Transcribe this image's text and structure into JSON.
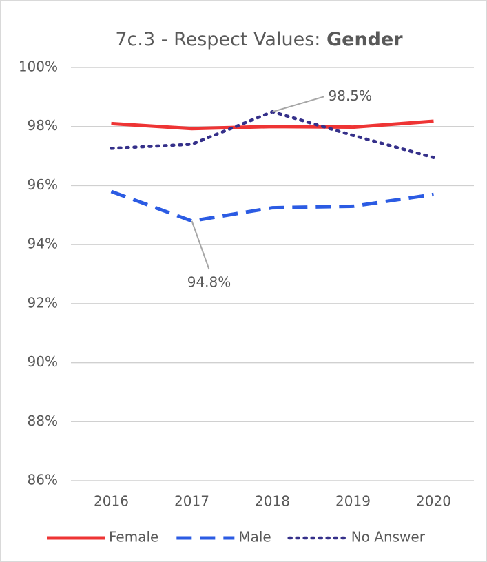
{
  "chart_data": {
    "type": "line",
    "title": "7c.3 - Respect Values:",
    "title_emphasis": "Gender",
    "categories": [
      "2016",
      "2017",
      "2018",
      "2019",
      "2020"
    ],
    "series": [
      {
        "name": "Female",
        "color": "#ee3434",
        "dash": "solid",
        "values": [
          98.1,
          97.93,
          98.0,
          97.98,
          98.18
        ]
      },
      {
        "name": "Male",
        "color": "#2b5be3",
        "dash": "dashed",
        "values": [
          95.8,
          94.8,
          95.25,
          95.3,
          95.7
        ],
        "value_labels": [
          null,
          "94.8%",
          null,
          null,
          null
        ]
      },
      {
        "name": "No Answer",
        "color": "#35308a",
        "dash": "dotted",
        "values": [
          97.26,
          97.4,
          98.5,
          97.7,
          96.95
        ],
        "value_labels": [
          null,
          null,
          "98.5%",
          null,
          null
        ]
      }
    ],
    "ylim": [
      86,
      100
    ],
    "yticks": [
      {
        "value": 86,
        "label": "86%"
      },
      {
        "value": 88,
        "label": "88%"
      },
      {
        "value": 90,
        "label": "90%"
      },
      {
        "value": 92,
        "label": "92%"
      },
      {
        "value": 94,
        "label": "94%"
      },
      {
        "value": 96,
        "label": "96%"
      },
      {
        "value": 98,
        "label": "98%"
      },
      {
        "value": 100,
        "label": "100%"
      }
    ],
    "grid": true,
    "legend": "bottom"
  }
}
